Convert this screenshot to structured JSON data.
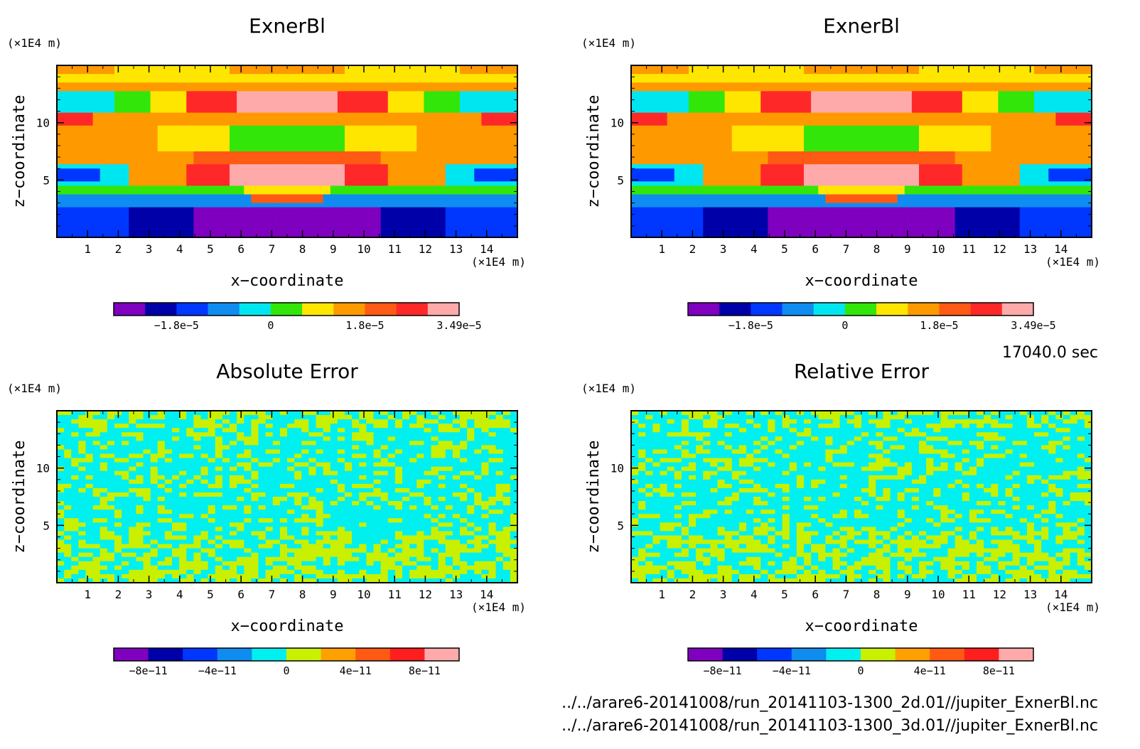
{
  "time_label": "17040.0 sec",
  "files": [
    "../../arare6-20141008/run_20141103-1300_2d.01//jupiter_ExnerBl.nc",
    "../../arare6-20141008/run_20141103-1300_3d.01//jupiter_ExnerBl.nc"
  ],
  "colors": {
    "levels": [
      "#7f00bf",
      "#0000a8",
      "#0037ff",
      "#0f8cf0",
      "#00e6f0",
      "#32e60a",
      "#ffe600",
      "#ff9900",
      "#ff5a14",
      "#ff2828",
      "#ffaaaa"
    ],
    "error_levels": [
      "#7f00bf",
      "#0000a8",
      "#0037ff",
      "#0f8cf0",
      "#00f0f0",
      "#c8f000",
      "#ffa000",
      "#ff5a14",
      "#ff1e1e",
      "#ffaaaa"
    ]
  },
  "chart_data": [
    {
      "type": "heatmap",
      "title": "ExnerBl",
      "xlabel": "x−coordinate",
      "ylabel": "z−coordinate",
      "x_unit": "(×1E4 m)",
      "y_unit": "(×1E4 m)",
      "xlim": [
        0,
        15
      ],
      "ylim": [
        0,
        15
      ],
      "x_ticks": [
        "1",
        "2",
        "3",
        "4",
        "5",
        "6",
        "7",
        "8",
        "9",
        "10",
        "11",
        "12",
        "13",
        "14"
      ],
      "y_ticks": [
        "5",
        "10"
      ],
      "colorbar": {
        "levels": 11,
        "labels": [
          "−1.8e−5",
          "0",
          "1.8e−5",
          "3.49e−5"
        ]
      },
      "field": "exner"
    },
    {
      "type": "heatmap",
      "title": "ExnerBl",
      "xlabel": "x−coordinate",
      "ylabel": "z−coordinate",
      "x_unit": "(×1E4 m)",
      "y_unit": "(×1E4 m)",
      "xlim": [
        0,
        15
      ],
      "ylim": [
        0,
        15
      ],
      "x_ticks": [
        "1",
        "2",
        "3",
        "4",
        "5",
        "6",
        "7",
        "8",
        "9",
        "10",
        "11",
        "12",
        "13",
        "14"
      ],
      "y_ticks": [
        "5",
        "10"
      ],
      "colorbar": {
        "levels": 11,
        "labels": [
          "−1.8e−5",
          "0",
          "1.8e−5",
          "3.49e−5"
        ]
      },
      "field": "exner"
    },
    {
      "type": "heatmap",
      "title": "Absolute Error",
      "xlabel": "x−coordinate",
      "ylabel": "z−coordinate",
      "x_unit": "(×1E4 m)",
      "y_unit": "(×1E4 m)",
      "xlim": [
        0,
        15
      ],
      "ylim": [
        0,
        15
      ],
      "x_ticks": [
        "1",
        "2",
        "3",
        "4",
        "5",
        "6",
        "7",
        "8",
        "9",
        "10",
        "11",
        "12",
        "13",
        "14"
      ],
      "y_ticks": [
        "5",
        "10"
      ],
      "colorbar": {
        "levels": 10,
        "labels": [
          "−8e−11",
          "−4e−11",
          "0",
          "4e−11",
          "8e−11"
        ]
      },
      "field": "error"
    },
    {
      "type": "heatmap",
      "title": "Relative Error",
      "xlabel": "x−coordinate",
      "ylabel": "z−coordinate",
      "x_unit": "(×1E4 m)",
      "y_unit": "(×1E4 m)",
      "xlim": [
        0,
        15
      ],
      "ylim": [
        0,
        15
      ],
      "x_ticks": [
        "1",
        "2",
        "3",
        "4",
        "5",
        "6",
        "7",
        "8",
        "9",
        "10",
        "11",
        "12",
        "13",
        "14"
      ],
      "y_ticks": [
        "5",
        "10"
      ],
      "colorbar": {
        "levels": 10,
        "labels": [
          "−8e−11",
          "−4e−11",
          "0",
          "4e−11",
          "8e−11"
        ]
      },
      "field": "error"
    }
  ]
}
